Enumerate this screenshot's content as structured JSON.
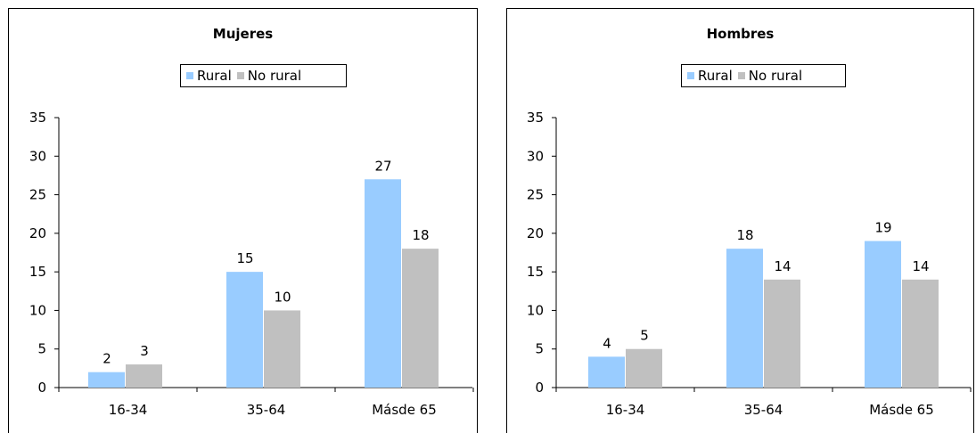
{
  "chart_data": [
    {
      "type": "bar",
      "title": "Mujeres",
      "categories": [
        "16-34",
        "35-64",
        "Másde 65"
      ],
      "series": [
        {
          "name": "Rural",
          "values": [
            2,
            15,
            27
          ],
          "color": "#99ccff"
        },
        {
          "name": "No rural",
          "values": [
            3,
            10,
            18
          ],
          "color": "#c0c0c0"
        }
      ],
      "ylim": [
        0,
        35
      ],
      "yticks": [
        0,
        5,
        10,
        15,
        20,
        25,
        30,
        35
      ],
      "xlabel": "",
      "ylabel": "",
      "legend": "top-center",
      "grid": false
    },
    {
      "type": "bar",
      "title": "Hombres",
      "categories": [
        "16-34",
        "35-64",
        "Másde 65"
      ],
      "series": [
        {
          "name": "Rural",
          "values": [
            4,
            18,
            19
          ],
          "color": "#99ccff"
        },
        {
          "name": "No rural",
          "values": [
            5,
            14,
            14
          ],
          "color": "#c0c0c0"
        }
      ],
      "ylim": [
        0,
        35
      ],
      "yticks": [
        0,
        5,
        10,
        15,
        20,
        25,
        30,
        35
      ],
      "xlabel": "",
      "ylabel": "",
      "legend": "top-center",
      "grid": false
    }
  ]
}
